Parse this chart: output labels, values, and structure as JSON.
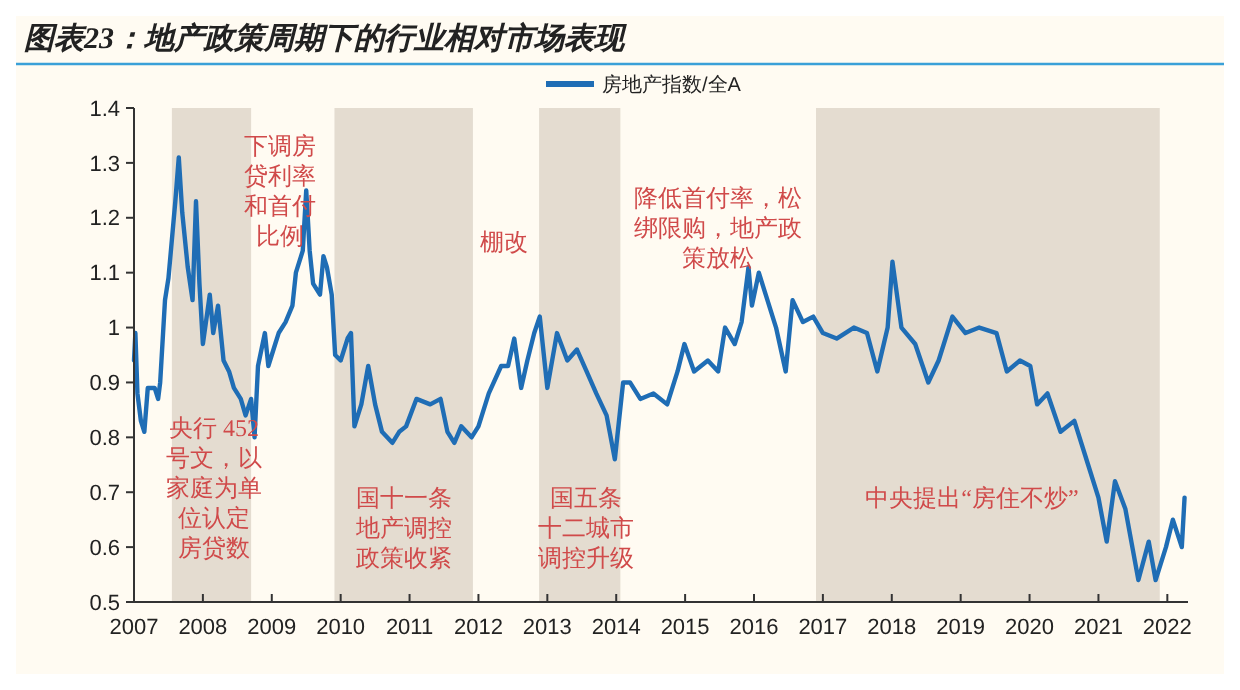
{
  "chart_data": {
    "type": "line",
    "title": "图表23：地产政策周期下的行业相对市场表现",
    "x": [
      2007.0,
      2007.02,
      2007.05,
      2007.1,
      2007.15,
      2007.2,
      2007.3,
      2007.35,
      2007.38,
      2007.45,
      2007.5,
      2007.6,
      2007.65,
      2007.7,
      2007.78,
      2007.85,
      2007.9,
      2007.95,
      2008.0,
      2008.1,
      2008.15,
      2008.22,
      2008.3,
      2008.38,
      2008.45,
      2008.55,
      2008.62,
      2008.7,
      2008.75,
      2008.8,
      2008.9,
      2008.95,
      2009.05,
      2009.1,
      2009.2,
      2009.3,
      2009.35,
      2009.45,
      2009.5,
      2009.55,
      2009.6,
      2009.7,
      2009.75,
      2009.8,
      2009.87,
      2009.92,
      2010.0,
      2010.1,
      2010.15,
      2010.2,
      2010.3,
      2010.4,
      2010.5,
      2010.6,
      2010.75,
      2010.85,
      2010.95,
      2011.1,
      2011.3,
      2011.45,
      2011.55,
      2011.65,
      2011.75,
      2011.9,
      2012.0,
      2012.15,
      2012.33,
      2012.43,
      2012.52,
      2012.62,
      2012.71,
      2012.81,
      2012.89,
      2013.0,
      2013.14,
      2013.29,
      2013.43,
      2013.57,
      2013.71,
      2013.86,
      2013.98,
      2014.1,
      2014.2,
      2014.35,
      2014.54,
      2014.74,
      2014.89,
      2014.99,
      2015.13,
      2015.33,
      2015.48,
      2015.58,
      2015.72,
      2015.82,
      2015.92,
      2015.97,
      2016.07,
      2016.17,
      2016.32,
      2016.46,
      2016.56,
      2016.71,
      2016.86,
      2017.0,
      2017.2,
      2017.45,
      2017.64,
      2017.79,
      2017.94,
      2018.01,
      2018.14,
      2018.34,
      2018.53,
      2018.68,
      2018.88,
      2019.07,
      2019.27,
      2019.52,
      2019.67,
      2019.86,
      2020.01,
      2020.11,
      2020.26,
      2020.45,
      2020.65,
      2020.85,
      2021.0,
      2021.12,
      2021.24,
      2021.39,
      2021.58,
      2021.73,
      2021.83,
      2021.98,
      2022.08,
      2022.21,
      2022.25
    ],
    "series": [
      {
        "name": "房地产指数/全A",
        "color": "#1f6db5",
        "values": [
          0.94,
          0.99,
          0.88,
          0.83,
          0.81,
          0.89,
          0.89,
          0.87,
          0.9,
          1.05,
          1.09,
          1.23,
          1.31,
          1.21,
          1.11,
          1.05,
          1.23,
          1.08,
          0.97,
          1.06,
          0.99,
          1.04,
          0.94,
          0.92,
          0.89,
          0.87,
          0.84,
          0.87,
          0.8,
          0.93,
          0.99,
          0.93,
          0.97,
          0.99,
          1.01,
          1.04,
          1.1,
          1.14,
          1.25,
          1.14,
          1.08,
          1.06,
          1.13,
          1.11,
          1.06,
          0.95,
          0.94,
          0.98,
          0.99,
          0.82,
          0.86,
          0.93,
          0.86,
          0.81,
          0.79,
          0.81,
          0.82,
          0.87,
          0.86,
          0.87,
          0.81,
          0.79,
          0.82,
          0.8,
          0.82,
          0.88,
          0.93,
          0.93,
          0.98,
          0.89,
          0.94,
          0.99,
          1.02,
          0.89,
          0.99,
          0.94,
          0.96,
          0.92,
          0.88,
          0.84,
          0.76,
          0.9,
          0.9,
          0.87,
          0.88,
          0.86,
          0.92,
          0.97,
          0.92,
          0.94,
          0.92,
          1.0,
          0.97,
          1.01,
          1.11,
          1.04,
          1.1,
          1.06,
          1.0,
          0.92,
          1.05,
          1.01,
          1.02,
          0.99,
          0.98,
          1.0,
          0.99,
          0.92,
          1.0,
          1.12,
          1.0,
          0.97,
          0.9,
          0.94,
          1.02,
          0.99,
          1.0,
          0.99,
          0.92,
          0.94,
          0.93,
          0.86,
          0.88,
          0.81,
          0.83,
          0.75,
          0.69,
          0.61,
          0.72,
          0.67,
          0.54,
          0.61,
          0.54,
          0.6,
          0.65,
          0.6,
          0.69
        ]
      }
    ],
    "xlim": [
      2007,
      2022.3
    ],
    "xticks": [
      2007,
      2008,
      2009,
      2010,
      2011,
      2012,
      2013,
      2014,
      2015,
      2016,
      2017,
      2018,
      2019,
      2020,
      2021,
      2022
    ],
    "ylim": [
      0.5,
      1.4
    ],
    "yticks": [
      0.5,
      0.6,
      0.7,
      0.8,
      0.9,
      1,
      1.1,
      1.2,
      1.3,
      1.4
    ],
    "bands": [
      {
        "axis": "x",
        "from": 2007.55,
        "to": 2008.7,
        "color": "#e4dcd0"
      },
      {
        "axis": "x",
        "from": 2009.91,
        "to": 2011.92,
        "color": "#e4dcd0"
      },
      {
        "axis": "x",
        "from": 2012.88,
        "to": 2014.06,
        "color": "#e4dcd0"
      },
      {
        "axis": "x",
        "from": 2016.9,
        "to": 2021.89,
        "color": "#e4dcd0"
      }
    ],
    "annotations": [
      "下调房贷利率和首付比例",
      "棚改",
      "央行 452号文，以家庭为单位认定房贷数",
      "国十一条地产调控政策收紧",
      "国五条十二城市调控升级",
      "降低首付率，松绑限购，地产政策放松",
      "中央提出“房住不炒”"
    ],
    "legend": "top",
    "grid": false,
    "line_style": "solid",
    "marker": "none"
  }
}
